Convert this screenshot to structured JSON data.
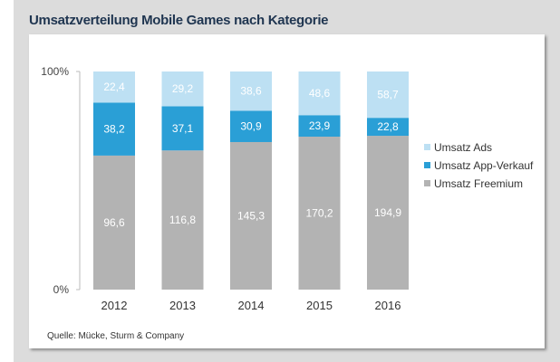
{
  "title": "Umsatzverteilung Mobile Games nach Kategorie",
  "source": "Quelle: Mücke, Sturm & Company",
  "chart_data": {
    "type": "bar",
    "stacked": "percent",
    "categories": [
      "2012",
      "2013",
      "2014",
      "2015",
      "2016"
    ],
    "series": [
      {
        "name": "Umsatz Freemium",
        "color": "#b3b3b3",
        "values": [
          96.6,
          116.8,
          145.3,
          170.2,
          194.9
        ],
        "labels": [
          "96,6",
          "116,8",
          "145,3",
          "170,2",
          "194,9"
        ]
      },
      {
        "name": "Umsatz App-Verkauf",
        "color": "#2a9fd6",
        "values": [
          38.2,
          37.1,
          30.9,
          23.9,
          22.8
        ],
        "labels": [
          "38,2",
          "37,1",
          "30,9",
          "23,9",
          "22,8"
        ]
      },
      {
        "name": "Umsatz Ads",
        "color": "#bde0f3",
        "values": [
          22.4,
          29.2,
          38.6,
          48.6,
          58.7
        ],
        "labels": [
          "22,4",
          "29,2",
          "38,6",
          "48,6",
          "58,7"
        ]
      }
    ],
    "legend_order": [
      "Umsatz Ads",
      "Umsatz App-Verkauf",
      "Umsatz Freemium"
    ],
    "yticks": [
      "0%",
      "100%"
    ],
    "ylim": [
      0,
      100
    ],
    "legend": "right",
    "grid": false
  }
}
